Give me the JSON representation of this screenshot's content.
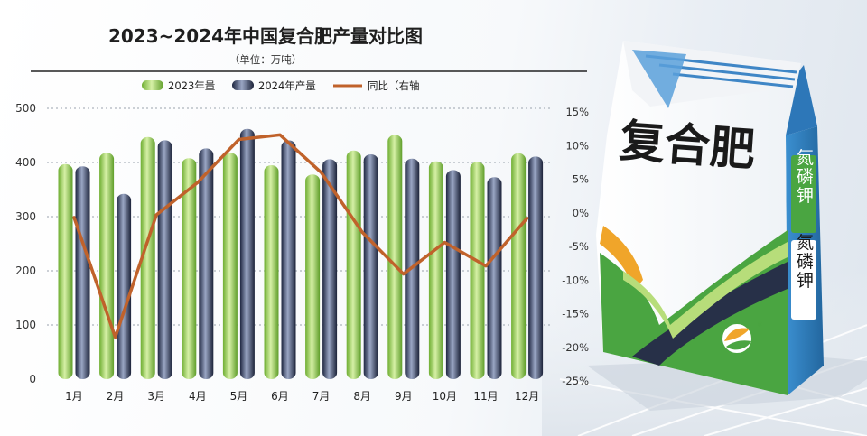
{
  "chart_data": {
    "type": "bar",
    "title": "2023~2024年中国复合肥产量对比图",
    "subtitle": "（单位：万吨）",
    "categories": [
      "1月",
      "2月",
      "3月",
      "4月",
      "5月",
      "6月",
      "7月",
      "8月",
      "9月",
      "10月",
      "11月",
      "12月"
    ],
    "series": [
      {
        "name": "2023年量",
        "type": "bar",
        "axis": "left",
        "color": "#8cc63f",
        "values": [
          397,
          418,
          447,
          408,
          418,
          395,
          378,
          422,
          451,
          402,
          401,
          417
        ]
      },
      {
        "name": "2024年产量",
        "type": "bar",
        "axis": "left",
        "color": "#2a3454",
        "values": [
          393,
          342,
          441,
          426,
          462,
          441,
          406,
          415,
          407,
          386,
          373,
          411
        ]
      },
      {
        "name": "同比（右轴",
        "type": "line",
        "axis": "right",
        "color": "#c0622b",
        "values": [
          -0.7,
          -18.5,
          -0.3,
          4.5,
          10.9,
          11.6,
          6.0,
          -2.9,
          -9.1,
          -4.4,
          -7.9,
          -0.8
        ]
      }
    ],
    "ylim": [
      0,
      500
    ],
    "yticks": [
      "0",
      "100",
      "200",
      "300",
      "400",
      "500"
    ],
    "y2lim": [
      -25,
      15
    ],
    "y2ticks": [
      "15%",
      "10%",
      "5%",
      "0%",
      "-5%",
      "-10%",
      "-15%",
      "-20%",
      "-25%"
    ],
    "legend_position": "top",
    "grid": "horizontal dotted"
  },
  "product": {
    "name": "复合肥",
    "tag1": "氮磷钾",
    "tag2": "氮磷钾",
    "registered": "®"
  },
  "colors": {
    "bar2023": "#8cc63f",
    "bar2024": "#2a3454",
    "line": "#c0622b",
    "bag_blue": "#2f7fc1",
    "bag_green": "#4aa541",
    "bag_orange": "#f0a52a"
  }
}
